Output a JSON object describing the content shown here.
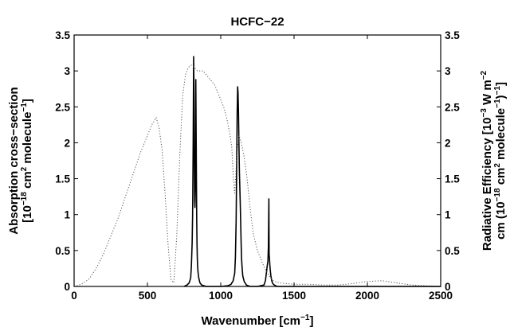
{
  "chart_data": {
    "type": "line",
    "title": "HCFC−22",
    "xlabel": {
      "main": "Wavenumber [cm",
      "sup": "−1",
      "end": "]"
    },
    "ylabel_left": {
      "line1": "Absorption cross−section",
      "line2": {
        "a": "[10",
        "sup1": "−18",
        "b": " cm",
        "sup2": "2",
        "c": " molecule",
        "sup3": "−1",
        "d": "]"
      }
    },
    "ylabel_right": {
      "line1": {
        "a": "Radiative Efficiency [10",
        "sup1": "−3",
        "b": " W m",
        "sup2": "−2"
      },
      "line2": {
        "a": "cm (10",
        "sup1": "−18",
        "b": " cm",
        "sup2": "2",
        "c": " molecule",
        "sup3": "−1",
        "d": ")",
        "sup4": "−1",
        "e": "]"
      }
    },
    "xlim": [
      0,
      2500
    ],
    "ylim_left": [
      0,
      3.5
    ],
    "ylim_right": [
      0,
      3.5
    ],
    "x_ticks": [
      "0",
      "500",
      "1000",
      "1500",
      "2000",
      "2500"
    ],
    "y_ticks_left": [
      "0",
      "0.5",
      "1",
      "1.5",
      "2",
      "2.5",
      "3",
      "3.5"
    ],
    "y_ticks_right": [
      "0",
      "0.5",
      "1",
      "1.5",
      "2",
      "2.5",
      "3",
      "3.5"
    ],
    "grid": false,
    "series": [
      {
        "style": "solid",
        "color": "#000000",
        "axis": "left",
        "x": [
          750,
          770,
          785,
          795,
          800,
          805,
          808,
          812,
          815,
          818,
          820,
          822,
          824,
          826,
          828,
          830,
          832,
          834,
          836,
          838,
          840,
          842,
          845,
          850,
          858,
          870,
          900,
          1000,
          1050,
          1070,
          1085,
          1095,
          1100,
          1105,
          1108,
          1112,
          1115,
          1118,
          1121,
          1124,
          1127,
          1130,
          1133,
          1136,
          1139,
          1142,
          1145,
          1150,
          1160,
          1175,
          1200,
          1250,
          1295,
          1305,
          1312,
          1318,
          1322,
          1325,
          1328,
          1330,
          1332,
          1335,
          1338,
          1342,
          1348,
          1355,
          1365,
          1385,
          1420,
          1600,
          2500
        ],
        "y": [
          0,
          0.02,
          0.05,
          0.12,
          0.3,
          0.6,
          1.0,
          2.0,
          3.2,
          2.6,
          1.6,
          1.2,
          1.1,
          1.35,
          1.9,
          2.88,
          2.2,
          1.5,
          1.0,
          0.6,
          0.4,
          0.3,
          0.2,
          0.12,
          0.05,
          0.02,
          0,
          0,
          0.01,
          0.03,
          0.08,
          0.18,
          0.4,
          0.9,
          1.6,
          2.4,
          2.78,
          2.7,
          2.4,
          2.0,
          1.6,
          1.4,
          1.15,
          0.9,
          0.6,
          0.4,
          0.28,
          0.15,
          0.07,
          0.02,
          0,
          0,
          0.02,
          0.08,
          0.2,
          0.3,
          0.35,
          0.55,
          1.22,
          0.45,
          0.4,
          0.3,
          0.22,
          0.15,
          0.08,
          0.04,
          0.02,
          0,
          0,
          0,
          0
        ]
      },
      {
        "style": "dotted",
        "color": "#555555",
        "axis": "right",
        "x": [
          0,
          50,
          100,
          150,
          200,
          250,
          300,
          350,
          400,
          450,
          500,
          530,
          560,
          580,
          600,
          620,
          640,
          660,
          680,
          700,
          720,
          740,
          760,
          780,
          800,
          820,
          840,
          860,
          880,
          900,
          920,
          940,
          960,
          980,
          1000,
          1020,
          1040,
          1060,
          1075,
          1085,
          1095,
          1105,
          1115,
          1125,
          1140,
          1160,
          1180,
          1200,
          1220,
          1250,
          1280,
          1300,
          1320,
          1340,
          1360,
          1380,
          1400,
          1450,
          1500,
          1600,
          1700,
          1800,
          1900,
          2000,
          2100,
          2200,
          2300,
          2400,
          2500
        ],
        "y": [
          0,
          0.03,
          0.1,
          0.25,
          0.45,
          0.7,
          0.95,
          1.25,
          1.55,
          1.85,
          2.1,
          2.25,
          2.35,
          2.2,
          1.9,
          1.3,
          0.6,
          0.1,
          0.05,
          0.7,
          1.8,
          2.65,
          2.95,
          3.05,
          3.08,
          3.05,
          3.0,
          3.0,
          3.0,
          2.95,
          2.9,
          2.85,
          2.8,
          2.7,
          2.6,
          2.5,
          2.35,
          2.15,
          1.95,
          1.55,
          1.3,
          1.65,
          1.95,
          2.1,
          2.0,
          1.8,
          1.5,
          1.1,
          0.75,
          0.5,
          0.35,
          0.25,
          0.18,
          0.12,
          0.08,
          0.06,
          0.05,
          0.04,
          0.03,
          0.03,
          0.02,
          0.02,
          0.04,
          0.07,
          0.08,
          0.05,
          0.02,
          0.01,
          0
        ]
      }
    ]
  }
}
